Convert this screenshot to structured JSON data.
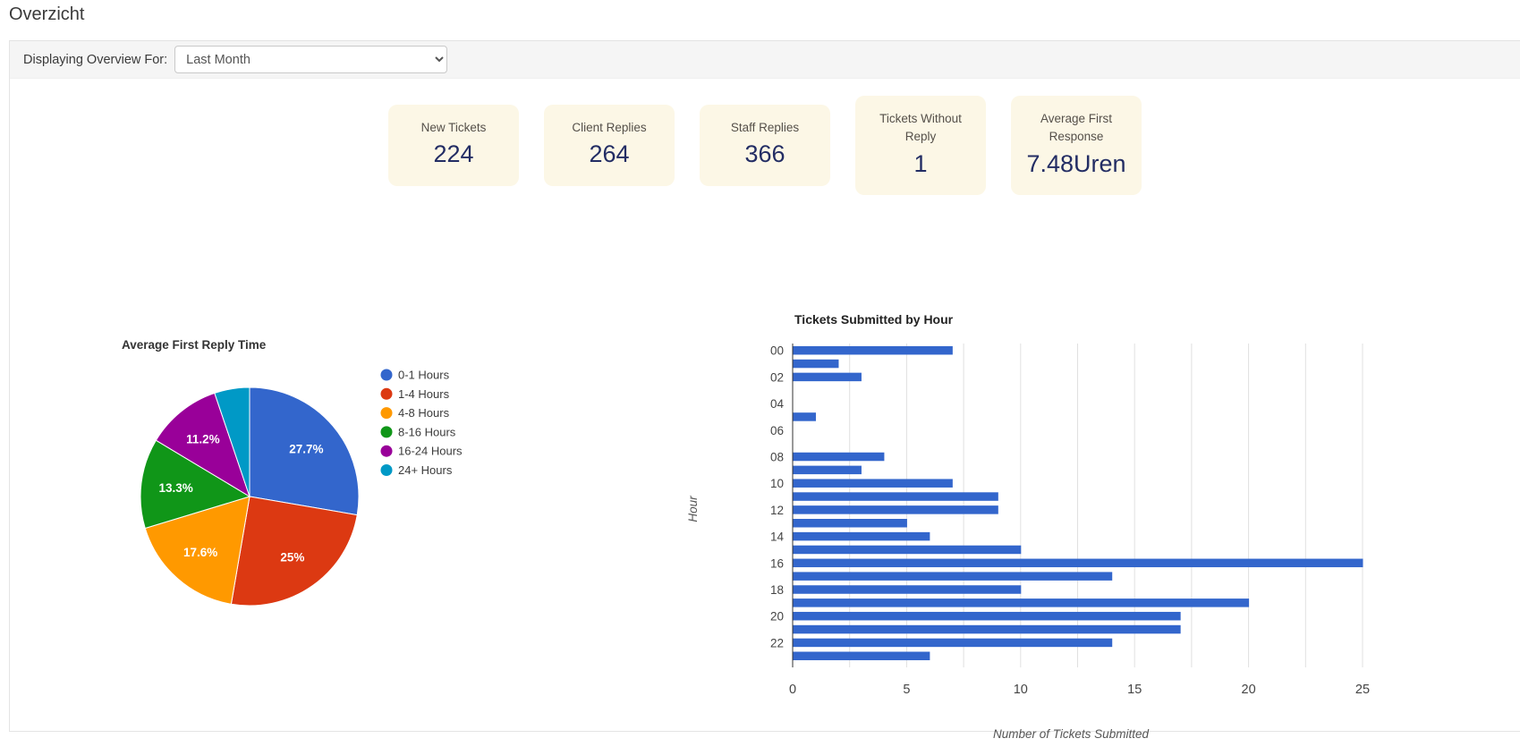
{
  "page": {
    "title": "Overzicht"
  },
  "filter": {
    "label": "Displaying Overview For:",
    "selected_option": "Last Month",
    "options": [
      "Last Month"
    ]
  },
  "stats": [
    {
      "label": "New Tickets",
      "value": "224"
    },
    {
      "label": "Client Replies",
      "value": "264"
    },
    {
      "label": "Staff Replies",
      "value": "366"
    },
    {
      "label": "Tickets Without Reply",
      "value": "1"
    },
    {
      "label": "Average First Response",
      "value": "7.48Uren"
    }
  ],
  "chart_data": [
    {
      "type": "pie",
      "title": "Average First Reply Time",
      "labels": [
        "0-1 Hours",
        "1-4 Hours",
        "4-8 Hours",
        "8-16 Hours",
        "16-24 Hours",
        "24+ Hours"
      ],
      "values": [
        27.7,
        25,
        17.6,
        13.3,
        11.2,
        5.2
      ],
      "slice_labels": [
        "27.7%",
        "25%",
        "17.6%",
        "13.3%",
        "11.2%",
        ""
      ],
      "colors": [
        "#3366cc",
        "#dc3912",
        "#ff9900",
        "#109618",
        "#990099",
        "#0099c6"
      ],
      "legend_position": "right",
      "start_angle_deg": 0,
      "direction": "clockwise"
    },
    {
      "type": "bar",
      "orientation": "horizontal",
      "title": "Tickets Submitted by Hour",
      "xlabel": "Number of Tickets Submitted",
      "ylabel": "Hour",
      "categories": [
        "00",
        "01",
        "02",
        "03",
        "04",
        "05",
        "06",
        "07",
        "08",
        "09",
        "10",
        "11",
        "12",
        "13",
        "14",
        "15",
        "16",
        "17",
        "18",
        "19",
        "20",
        "21",
        "22",
        "23"
      ],
      "values": [
        7,
        2,
        3,
        0,
        0,
        1,
        0,
        0,
        4,
        3,
        7,
        9,
        9,
        5,
        6,
        10,
        25,
        14,
        10,
        20,
        17,
        17,
        14,
        6
      ],
      "shown_ytick_labels": [
        "00",
        "02",
        "04",
        "06",
        "08",
        "10",
        "12",
        "14",
        "16",
        "18",
        "20",
        "22"
      ],
      "xticks": [
        0,
        5,
        10,
        15,
        20,
        25
      ],
      "xlim": [
        0,
        25
      ],
      "grid": true,
      "bar_color": "#3366cc",
      "legend_position": "none"
    }
  ]
}
